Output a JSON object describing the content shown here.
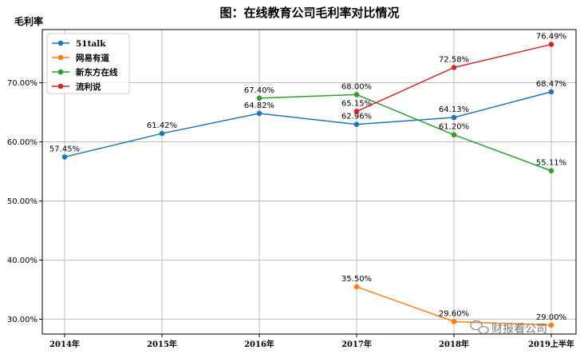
{
  "chart_data": {
    "type": "line",
    "title": "图：在线教育公司毛利率对比情况",
    "xlabel": "",
    "ylabel": "毛利率",
    "categories": [
      "2014年",
      "2015年",
      "2016年",
      "2017年",
      "2018年",
      "2019上半年"
    ],
    "ylim": [
      27.5,
      79
    ],
    "yticks": [
      30,
      40,
      50,
      60,
      70
    ],
    "ytick_labels": [
      "30.00%",
      "40.00%",
      "50.00%",
      "60.00%",
      "70.00%"
    ],
    "grid": true,
    "legend_position": "top-left",
    "series": [
      {
        "name": "51talk",
        "color": "#1f77b4",
        "values": [
          57.45,
          61.42,
          64.82,
          62.96,
          64.13,
          68.47
        ],
        "labels": [
          "57.45%",
          "61.42%",
          "64.82%",
          "62.96%",
          "64.13%",
          "68.47%"
        ]
      },
      {
        "name": "网易有道",
        "color": "#ff7f0e",
        "values": [
          null,
          null,
          null,
          35.5,
          29.6,
          29.0
        ],
        "labels": [
          null,
          null,
          null,
          "35.50%",
          "29.60%",
          "29.00%"
        ]
      },
      {
        "name": "新东方在线",
        "color": "#2ca02c",
        "values": [
          null,
          null,
          67.4,
          68.0,
          61.2,
          55.11
        ],
        "labels": [
          null,
          null,
          "67.40%",
          "68.00%",
          "61.20%",
          "55.11%"
        ]
      },
      {
        "name": "流利说",
        "color": "#d62728",
        "values": [
          null,
          null,
          null,
          65.15,
          72.58,
          76.49
        ],
        "labels": [
          null,
          null,
          null,
          "65.15%",
          "72.58%",
          "76.49%"
        ]
      }
    ]
  },
  "watermark": {
    "text": "财报看公司"
  }
}
